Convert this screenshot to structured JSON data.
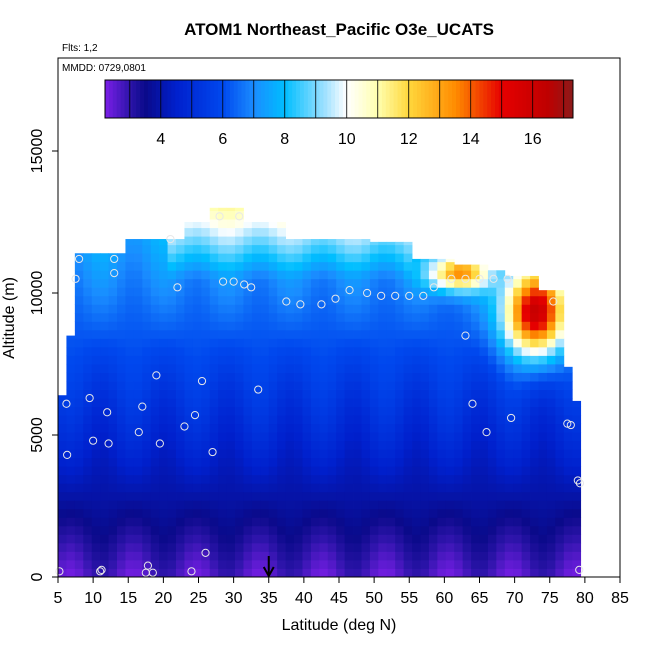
{
  "chart_data": {
    "type": "heatmap",
    "title": "ATOM1 Northeast_Pacific O3e_UCATS",
    "annotations": [
      "Flts: 1,2",
      "MMDD: 0729,0801"
    ],
    "xlabel": "Latitude (deg N)",
    "ylabel": "Altitude (m)",
    "xlim": [
      5,
      85
    ],
    "ylim": [
      0,
      17500
    ],
    "x_ticks": [
      "5",
      "10",
      "15",
      "20",
      "25",
      "30",
      "35",
      "40",
      "45",
      "50",
      "55",
      "60",
      "65",
      "70",
      "75",
      "80",
      "85"
    ],
    "y_ticks": [
      "0",
      "5000",
      "10000",
      "15000"
    ],
    "colorbar": {
      "ticks": [
        "4",
        "6",
        "8",
        "10",
        "12",
        "14",
        "16"
      ],
      "range": [
        2.2,
        17.3
      ],
      "placement": "top-inside"
    },
    "marker": {
      "latitude": 35,
      "symbol": "down-arrow"
    },
    "colors": [
      "#7b1fe8",
      "#0a0a8a",
      "#0040e0",
      "#1aa0ff",
      "#ffffff",
      "#ffe066",
      "#ff8c00",
      "#e60000",
      "#8b1a1a"
    ],
    "sample_points": [
      [
        5.2,
        200
      ],
      [
        6.2,
        6100
      ],
      [
        6.3,
        4300
      ],
      [
        7.5,
        10500
      ],
      [
        8.0,
        11200
      ],
      [
        9.5,
        6300
      ],
      [
        10.0,
        4800
      ],
      [
        11.0,
        200
      ],
      [
        11.2,
        250
      ],
      [
        12.0,
        5800
      ],
      [
        12.2,
        4700
      ],
      [
        13.0,
        11200
      ],
      [
        13.0,
        10700
      ],
      [
        16.5,
        5100
      ],
      [
        17.0,
        6000
      ],
      [
        17.5,
        150
      ],
      [
        17.8,
        400
      ],
      [
        18.5,
        150
      ],
      [
        19.0,
        7100
      ],
      [
        19.5,
        4700
      ],
      [
        21.0,
        11900
      ],
      [
        22.0,
        10200
      ],
      [
        23.0,
        5300
      ],
      [
        24.0,
        200
      ],
      [
        24.5,
        5700
      ],
      [
        25.5,
        6900
      ],
      [
        26.0,
        850
      ],
      [
        27.0,
        4400
      ],
      [
        28.0,
        12700
      ],
      [
        28.5,
        10400
      ],
      [
        30.0,
        10400
      ],
      [
        30.8,
        12700
      ],
      [
        31.5,
        10300
      ],
      [
        32.5,
        10200
      ],
      [
        33.5,
        6600
      ],
      [
        37.5,
        9700
      ],
      [
        39.5,
        9600
      ],
      [
        42.5,
        9600
      ],
      [
        44.5,
        9800
      ],
      [
        46.5,
        10100
      ],
      [
        49.0,
        10000
      ],
      [
        51.0,
        9900
      ],
      [
        53.0,
        9900
      ],
      [
        55.0,
        9900
      ],
      [
        57.0,
        9900
      ],
      [
        58.5,
        10200
      ],
      [
        61.0,
        10500
      ],
      [
        63.0,
        8500
      ],
      [
        63.0,
        10500
      ],
      [
        64.0,
        6100
      ],
      [
        65.0,
        10500
      ],
      [
        66.0,
        5100
      ],
      [
        67.0,
        10500
      ],
      [
        69.0,
        10500
      ],
      [
        69.5,
        5600
      ],
      [
        75.5,
        9700
      ],
      [
        77.5,
        5400
      ],
      [
        78.0,
        5350
      ],
      [
        79.0,
        3400
      ],
      [
        79.3,
        3300
      ],
      [
        79.2,
        250
      ]
    ]
  }
}
